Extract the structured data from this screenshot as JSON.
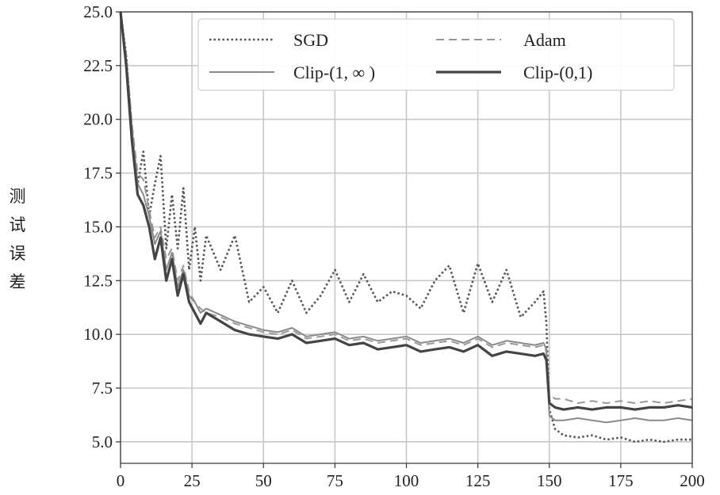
{
  "chart_data": {
    "type": "line",
    "title": "",
    "xlabel": "",
    "ylabel": "测试误差",
    "xlim": [
      0,
      200
    ],
    "ylim": [
      4.0,
      25.0
    ],
    "xticks": [
      0,
      25,
      50,
      75,
      100,
      125,
      150,
      175,
      200
    ],
    "yticks": [
      5.0,
      7.5,
      10.0,
      12.5,
      15.0,
      17.5,
      20.0,
      22.5,
      25.0
    ],
    "xtick_labels": [
      "0",
      "25",
      "50",
      "75",
      "100",
      "125",
      "150",
      "175",
      "200"
    ],
    "ytick_labels": [
      "5.0",
      "7.5",
      "10.0",
      "12.5",
      "15.0",
      "17.5",
      "20.0",
      "22.5",
      "25.0"
    ],
    "grid": true,
    "legend": {
      "placement": "top-right",
      "columns": 2
    },
    "series": [
      {
        "name": "SGD",
        "style": "dotted",
        "color": "#555555",
        "x": [
          0,
          2,
          4,
          6,
          8,
          10,
          12,
          14,
          16,
          18,
          20,
          22,
          24,
          26,
          28,
          30,
          35,
          40,
          45,
          50,
          55,
          60,
          65,
          70,
          75,
          80,
          85,
          90,
          95,
          100,
          105,
          110,
          115,
          120,
          125,
          130,
          135,
          140,
          145,
          148,
          149,
          150,
          152,
          155,
          160,
          165,
          170,
          175,
          180,
          185,
          190,
          195,
          200
        ],
        "y": [
          25.0,
          23.0,
          19.5,
          17.0,
          18.5,
          15.5,
          17.0,
          18.3,
          14.0,
          16.5,
          14.0,
          16.8,
          13.0,
          15.0,
          12.5,
          14.6,
          13.0,
          14.6,
          11.5,
          12.2,
          11.0,
          12.5,
          11.0,
          11.8,
          13.0,
          11.5,
          12.8,
          11.5,
          12.0,
          11.8,
          11.2,
          12.5,
          13.2,
          11.0,
          13.3,
          11.5,
          13.0,
          10.8,
          11.5,
          12.0,
          10.5,
          6.5,
          5.6,
          5.3,
          5.2,
          5.3,
          5.1,
          5.2,
          5.0,
          5.1,
          5.0,
          5.1,
          5.1
        ]
      },
      {
        "name": "Adam",
        "style": "dashed",
        "color": "#999999",
        "x": [
          0,
          2,
          4,
          6,
          8,
          10,
          12,
          14,
          16,
          18,
          20,
          22,
          24,
          26,
          28,
          30,
          35,
          40,
          45,
          50,
          55,
          60,
          65,
          70,
          75,
          80,
          85,
          90,
          95,
          100,
          105,
          110,
          115,
          120,
          125,
          130,
          135,
          140,
          145,
          148,
          149,
          150,
          152,
          155,
          160,
          165,
          170,
          175,
          180,
          185,
          190,
          195,
          200
        ],
        "y": [
          25.0,
          23.0,
          19.8,
          17.5,
          17.2,
          15.8,
          14.5,
          15.0,
          13.5,
          14.0,
          12.5,
          13.2,
          12.0,
          11.5,
          11.2,
          11.0,
          10.8,
          10.5,
          10.3,
          10.1,
          10.0,
          10.2,
          9.8,
          9.9,
          10.0,
          9.7,
          9.8,
          9.6,
          9.7,
          9.8,
          9.5,
          9.6,
          9.7,
          9.5,
          9.8,
          9.4,
          9.6,
          9.5,
          9.4,
          9.5,
          9.2,
          7.2,
          7.0,
          7.0,
          6.8,
          6.9,
          6.8,
          6.9,
          6.8,
          6.9,
          6.8,
          6.9,
          7.0
        ]
      },
      {
        "name": "Clip-(1, ∞ )",
        "style": "solid-thin",
        "color": "#8a8a8a",
        "x": [
          0,
          2,
          4,
          6,
          8,
          10,
          12,
          14,
          16,
          18,
          20,
          22,
          24,
          26,
          28,
          30,
          35,
          40,
          45,
          50,
          55,
          60,
          65,
          70,
          75,
          80,
          85,
          90,
          95,
          100,
          105,
          110,
          115,
          120,
          125,
          130,
          135,
          140,
          145,
          148,
          149,
          150,
          152,
          155,
          160,
          165,
          170,
          175,
          180,
          185,
          190,
          195,
          200
        ],
        "y": [
          25.0,
          22.8,
          19.5,
          17.0,
          16.5,
          15.5,
          14.2,
          14.8,
          13.0,
          13.8,
          12.2,
          13.0,
          11.8,
          11.5,
          11.0,
          11.2,
          10.9,
          10.6,
          10.4,
          10.2,
          10.1,
          10.3,
          9.9,
          10.0,
          10.1,
          9.8,
          9.9,
          9.7,
          9.8,
          9.9,
          9.6,
          9.7,
          9.8,
          9.6,
          9.9,
          9.5,
          9.7,
          9.6,
          9.5,
          9.6,
          9.3,
          6.2,
          6.0,
          6.0,
          6.1,
          6.0,
          5.9,
          6.0,
          6.1,
          6.0,
          6.0,
          6.1,
          6.0
        ]
      },
      {
        "name": "Clip-(0,1)",
        "style": "solid-thick",
        "color": "#444444",
        "x": [
          0,
          2,
          4,
          6,
          8,
          10,
          12,
          14,
          16,
          18,
          20,
          22,
          24,
          26,
          28,
          30,
          35,
          40,
          45,
          50,
          55,
          60,
          65,
          70,
          75,
          80,
          85,
          90,
          95,
          100,
          105,
          110,
          115,
          120,
          125,
          130,
          135,
          140,
          145,
          148,
          149,
          150,
          152,
          155,
          160,
          165,
          170,
          175,
          180,
          185,
          190,
          195,
          200
        ],
        "y": [
          25.0,
          22.5,
          19.0,
          16.5,
          16.0,
          15.0,
          13.5,
          14.5,
          12.5,
          13.5,
          11.8,
          12.8,
          11.5,
          11.0,
          10.5,
          11.0,
          10.6,
          10.2,
          10.0,
          9.9,
          9.8,
          10.0,
          9.6,
          9.7,
          9.8,
          9.5,
          9.6,
          9.3,
          9.4,
          9.5,
          9.2,
          9.3,
          9.4,
          9.2,
          9.5,
          9.0,
          9.2,
          9.1,
          9.0,
          9.1,
          8.8,
          6.8,
          6.6,
          6.5,
          6.6,
          6.5,
          6.6,
          6.6,
          6.5,
          6.6,
          6.6,
          6.7,
          6.6
        ]
      }
    ]
  }
}
